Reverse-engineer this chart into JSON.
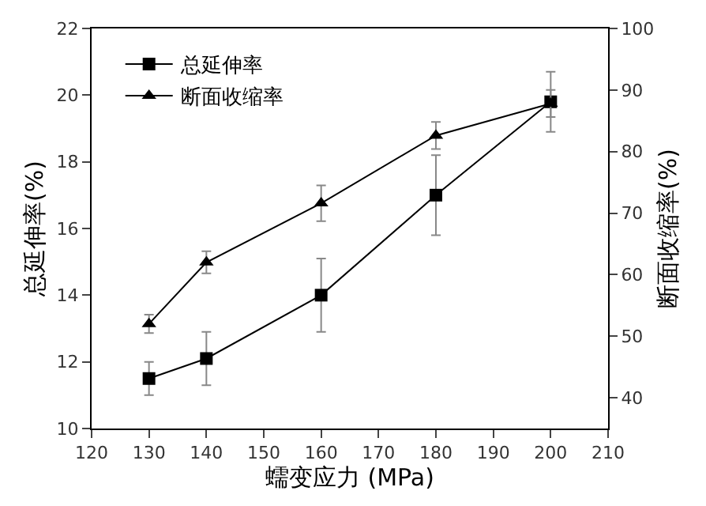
{
  "chart_data": {
    "type": "line",
    "xlabel": "蠕变应力 (MPa)",
    "ylabel": "总延伸率(%)",
    "y2label": "断面收缩率(%)",
    "x": [
      130,
      140,
      160,
      180,
      200
    ],
    "series": [
      {
        "name": "总延伸率",
        "color": "#000000",
        "values": [
          11.5,
          12.1,
          14.0,
          17.0,
          19.8
        ],
        "errors": [
          0.5,
          0.8,
          1.1,
          1.2,
          0.9
        ],
        "marker": "square"
      },
      {
        "name": "断面收缩率",
        "color": "#000000",
        "values": [
          52,
          62,
          71.6,
          82.6,
          87.8
        ],
        "errors": [
          1.5,
          1.8,
          2.9,
          2.2,
          2.2
        ],
        "marker": "triangle",
        "axis": "y2"
      }
    ],
    "xlim": [
      120,
      210
    ],
    "xticks": [
      120,
      130,
      140,
      150,
      160,
      170,
      180,
      190,
      200,
      210
    ],
    "ylim": [
      10,
      22
    ],
    "yticks": [
      10,
      12,
      14,
      16,
      18,
      20,
      22
    ],
    "y2lim": [
      35,
      100
    ],
    "y2ticks": [
      40,
      50,
      60,
      70,
      80,
      90,
      100
    ],
    "legend": "top left",
    "line_style": "solid"
  }
}
